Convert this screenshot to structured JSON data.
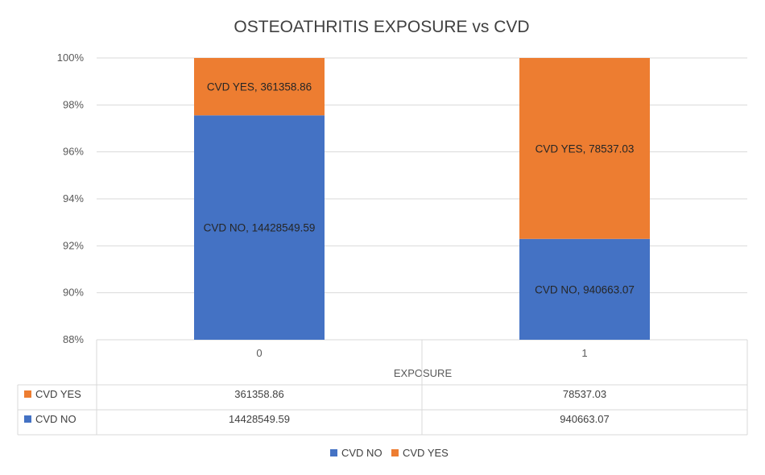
{
  "chart_data": {
    "type": "bar",
    "stacked": "percent",
    "title": "OSTEOATHRITIS EXPOSURE vs CVD",
    "xlabel": "EXPOSURE",
    "ylabel": "",
    "categories": [
      "0",
      "1"
    ],
    "series": [
      {
        "name": "CVD NO",
        "values": [
          14428549.59,
          940663.07
        ],
        "value_labels": [
          "14428549.59",
          "940663.07"
        ],
        "data_labels": [
          "CVD NO, 14428549.59",
          "CVD NO, 940663.07"
        ],
        "color": "#4472C4"
      },
      {
        "name": "CVD YES",
        "values": [
          361358.86,
          78537.03
        ],
        "value_labels": [
          "361358.86",
          "78537.03"
        ],
        "data_labels": [
          "CVD YES, 361358.86",
          "CVD YES, 78537.03"
        ],
        "color": "#ED7D31"
      }
    ],
    "ylim": [
      0.88,
      1.0
    ],
    "yticks": [
      "88%",
      "90%",
      "92%",
      "94%",
      "96%",
      "98%",
      "100%"
    ],
    "ytick_values": [
      0.88,
      0.9,
      0.92,
      0.94,
      0.96,
      0.98,
      1.0
    ],
    "data_table": true,
    "legend": "bottom",
    "grid": true
  }
}
